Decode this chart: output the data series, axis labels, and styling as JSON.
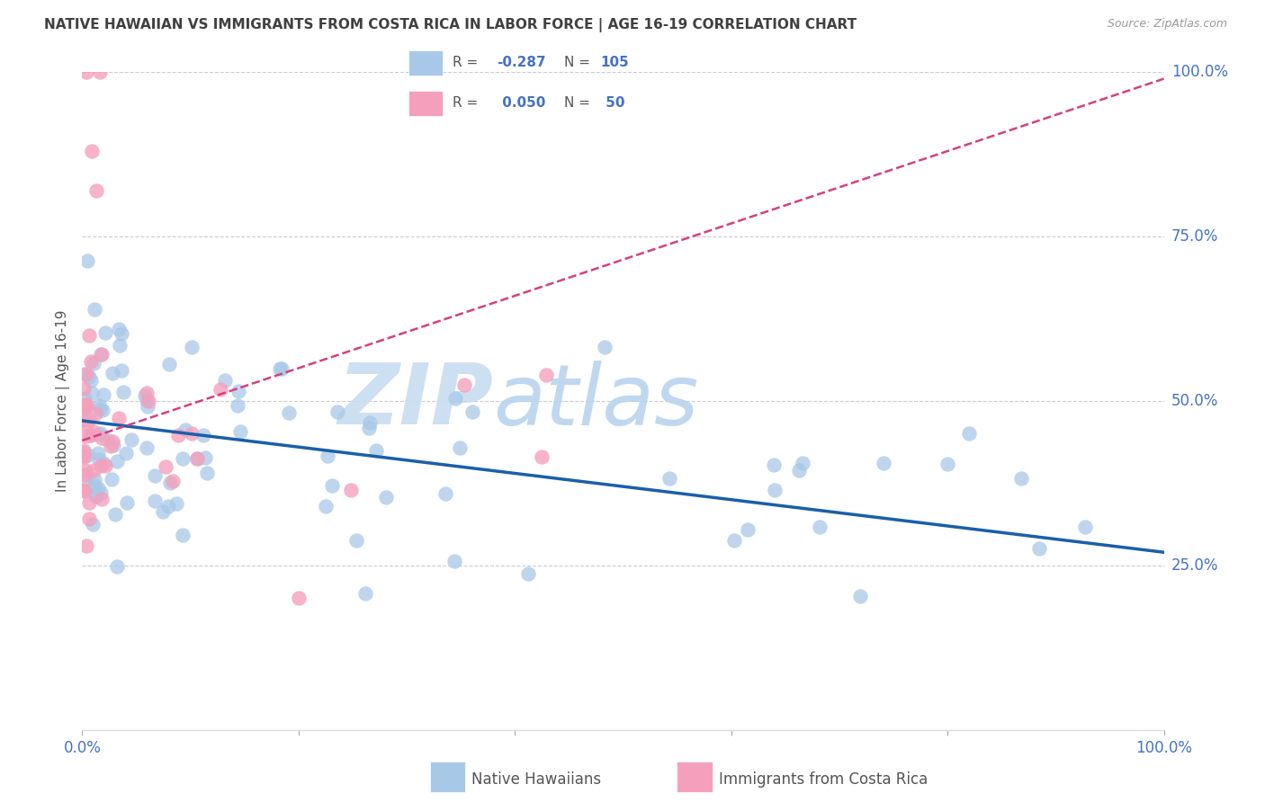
{
  "title": "NATIVE HAWAIIAN VS IMMIGRANTS FROM COSTA RICA IN LABOR FORCE | AGE 16-19 CORRELATION CHART",
  "source": "Source: ZipAtlas.com",
  "ylabel": "In Labor Force | Age 16-19",
  "legend_label_blue": "Native Hawaiians",
  "legend_label_pink": "Immigrants from Costa Rica",
  "blue_R": "-0.287",
  "blue_N": "105",
  "pink_R": "0.050",
  "pink_N": "50",
  "blue_scatter_color": "#a8c8e8",
  "pink_scatter_color": "#f4a0bc",
  "blue_line_color": "#1a5fa8",
  "pink_line_color": "#d44080",
  "title_color": "#404040",
  "axis_color": "#4472c4",
  "grid_color": "#cccccc",
  "watermark_zip": "ZIP",
  "watermark_atlas": "atlas",
  "watermark_color_zip": "#c8ddf0",
  "watermark_color_atlas": "#c8ddf0",
  "legend_border_color": "#cccccc",
  "text_gray": "#555555"
}
